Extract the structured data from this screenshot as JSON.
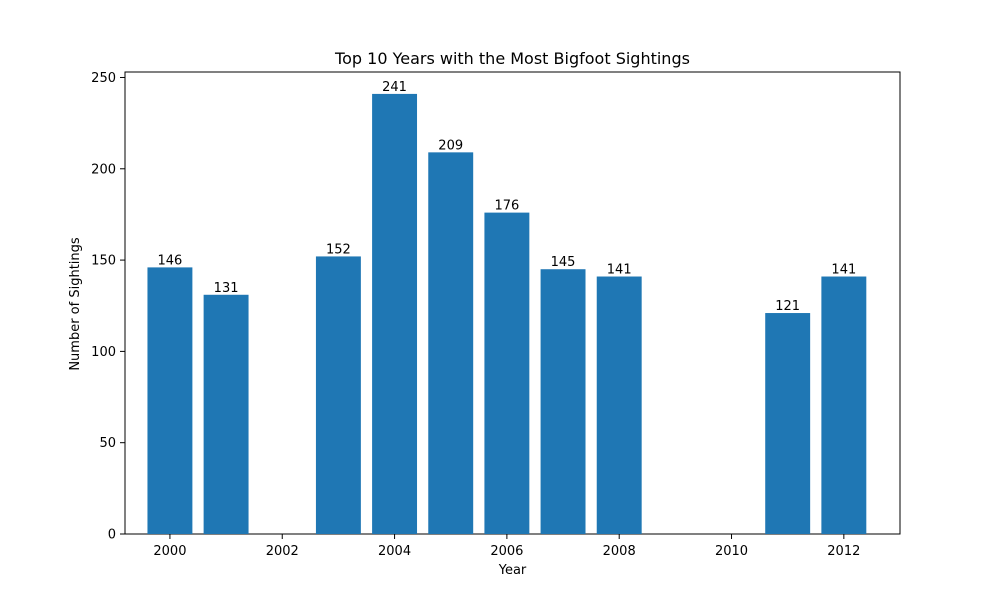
{
  "chart_data": {
    "type": "bar",
    "title": "Top 10 Years with the Most Bigfoot Sightings",
    "xlabel": "Year",
    "ylabel": "Number of Sightings",
    "x": [
      2000,
      2001,
      2003,
      2004,
      2005,
      2006,
      2007,
      2008,
      2011,
      2012
    ],
    "values": [
      146,
      131,
      152,
      241,
      209,
      176,
      145,
      141,
      121,
      141
    ],
    "data_labels": [
      "146",
      "131",
      "152",
      "241",
      "209",
      "176",
      "145",
      "141",
      "121",
      "141"
    ],
    "xlim": [
      1999.2,
      2013.0
    ],
    "ylim": [
      0,
      253
    ],
    "xticks": [
      2000,
      2002,
      2004,
      2006,
      2008,
      2010,
      2012
    ],
    "xtick_labels": [
      "2000",
      "2002",
      "2004",
      "2006",
      "2008",
      "2010",
      "2012"
    ],
    "yticks": [
      0,
      50,
      100,
      150,
      200,
      250
    ],
    "ytick_labels": [
      "0",
      "50",
      "100",
      "150",
      "200",
      "250"
    ],
    "bar_width": 0.8,
    "grid": false,
    "legend": "none",
    "colors": {
      "bar": "#1f77b4",
      "axis": "#000000",
      "text": "#000000"
    }
  }
}
